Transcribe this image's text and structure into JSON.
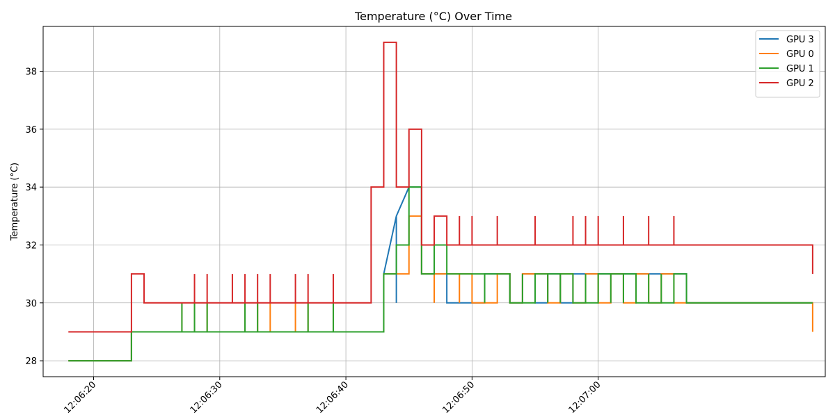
{
  "chart_data": {
    "type": "line",
    "title": "Temperature (°C) Over Time",
    "xlabel": "",
    "ylabel": "Temperature (°C)",
    "xlim": [
      "12:06:16",
      "12:07:18"
    ],
    "ylim": [
      27.45,
      39.55
    ],
    "x_ticks": [
      "12:06:20",
      "12:06:30",
      "12:06:40",
      "12:06:50",
      "12:07:00"
    ],
    "y_ticks": [
      28,
      30,
      32,
      34,
      36,
      38
    ],
    "grid": true,
    "legend_position": "top-right",
    "series": [
      {
        "name": "GPU 3",
        "color": "#1f77b4",
        "step": false,
        "points": [
          [
            "12:06:18",
            28
          ],
          [
            "12:06:23",
            28
          ],
          [
            "12:06:23",
            29
          ],
          [
            "12:06:43",
            29
          ],
          [
            "12:06:43",
            31
          ],
          [
            "12:06:44",
            33
          ],
          [
            "12:06:44",
            30
          ],
          [
            "12:06:44",
            33
          ],
          [
            "12:06:45",
            34
          ],
          [
            "12:06:46",
            34
          ],
          [
            "12:06:46",
            31
          ],
          [
            "12:06:48",
            31
          ],
          [
            "12:06:48",
            30
          ],
          [
            "12:06:51",
            30
          ],
          [
            "12:06:51",
            31
          ],
          [
            "12:06:53",
            31
          ],
          [
            "12:06:53",
            30
          ],
          [
            "12:06:54",
            30
          ],
          [
            "12:06:54",
            31
          ],
          [
            "12:06:55",
            31
          ],
          [
            "12:06:55",
            30
          ],
          [
            "12:06:56",
            30
          ],
          [
            "12:06:56",
            31
          ],
          [
            "12:06:57",
            31
          ],
          [
            "12:06:57",
            30
          ],
          [
            "12:06:58",
            30
          ],
          [
            "12:06:58",
            31
          ],
          [
            "12:07:07",
            31
          ],
          [
            "12:07:07",
            30
          ],
          [
            "12:07:17",
            30
          ]
        ]
      },
      {
        "name": "GPU 0",
        "color": "#ff7f0e",
        "step": true,
        "points": [
          [
            "12:06:18",
            28
          ],
          [
            "12:06:23",
            29
          ],
          [
            "12:06:27",
            30
          ],
          [
            "12:06:27",
            29
          ],
          [
            "12:06:28",
            30
          ],
          [
            "12:06:28",
            29
          ],
          [
            "12:06:29",
            30
          ],
          [
            "12:06:29",
            29
          ],
          [
            "12:06:32",
            30
          ],
          [
            "12:06:32",
            29
          ],
          [
            "12:06:33",
            30
          ],
          [
            "12:06:33",
            29
          ],
          [
            "12:06:34",
            30
          ],
          [
            "12:06:34",
            29
          ],
          [
            "12:06:36",
            30
          ],
          [
            "12:06:36",
            29
          ],
          [
            "12:06:37",
            30
          ],
          [
            "12:06:37",
            29
          ],
          [
            "12:06:39",
            30
          ],
          [
            "12:06:39",
            29
          ],
          [
            "12:06:43",
            31
          ],
          [
            "12:06:45",
            33
          ],
          [
            "12:06:46",
            31
          ],
          [
            "12:06:47",
            30
          ],
          [
            "12:06:47",
            31
          ],
          [
            "12:06:49",
            30
          ],
          [
            "12:06:49",
            31
          ],
          [
            "12:06:50",
            30
          ],
          [
            "12:06:52",
            31
          ],
          [
            "12:06:53",
            30
          ],
          [
            "12:06:54",
            31
          ],
          [
            "12:06:56",
            30
          ],
          [
            "12:06:57",
            31
          ],
          [
            "12:06:58",
            30
          ],
          [
            "12:06:59",
            31
          ],
          [
            "12:07:00",
            30
          ],
          [
            "12:07:01",
            31
          ],
          [
            "12:07:02",
            30
          ],
          [
            "12:07:03",
            31
          ],
          [
            "12:07:04",
            30
          ],
          [
            "12:07:05",
            31
          ],
          [
            "12:07:06",
            30
          ],
          [
            "12:07:07",
            30
          ],
          [
            "12:07:17",
            29
          ]
        ]
      },
      {
        "name": "GPU 1",
        "color": "#2ca02c",
        "step": true,
        "points": [
          [
            "12:06:18",
            28
          ],
          [
            "12:06:23",
            29
          ],
          [
            "12:06:27",
            30
          ],
          [
            "12:06:27",
            29
          ],
          [
            "12:06:28",
            30
          ],
          [
            "12:06:28",
            29
          ],
          [
            "12:06:29",
            30
          ],
          [
            "12:06:29",
            29
          ],
          [
            "12:06:32",
            30
          ],
          [
            "12:06:32",
            29
          ],
          [
            "12:06:33",
            30
          ],
          [
            "12:06:33",
            29
          ],
          [
            "12:06:37",
            30
          ],
          [
            "12:06:37",
            29
          ],
          [
            "12:06:39",
            30
          ],
          [
            "12:06:39",
            29
          ],
          [
            "12:06:43",
            31
          ],
          [
            "12:06:44",
            32
          ],
          [
            "12:06:45",
            34
          ],
          [
            "12:06:46",
            31
          ],
          [
            "12:06:47",
            32
          ],
          [
            "12:06:48",
            31
          ],
          [
            "12:06:51",
            30
          ],
          [
            "12:06:51",
            31
          ],
          [
            "12:06:53",
            30
          ],
          [
            "12:06:54",
            31
          ],
          [
            "12:06:54",
            30
          ],
          [
            "12:06:55",
            31
          ],
          [
            "12:06:56",
            30
          ],
          [
            "12:06:56",
            31
          ],
          [
            "12:06:57",
            30
          ],
          [
            "12:06:57",
            31
          ],
          [
            "12:06:58",
            30
          ],
          [
            "12:06:59",
            31
          ],
          [
            "12:06:59",
            30
          ],
          [
            "12:07:00",
            31
          ],
          [
            "12:07:01",
            30
          ],
          [
            "12:07:01",
            31
          ],
          [
            "12:07:02",
            30
          ],
          [
            "12:07:02",
            31
          ],
          [
            "12:07:03",
            30
          ],
          [
            "12:07:04",
            31
          ],
          [
            "12:07:04",
            30
          ],
          [
            "12:07:05",
            31
          ],
          [
            "12:07:05",
            30
          ],
          [
            "12:07:06",
            31
          ],
          [
            "12:07:07",
            30
          ],
          [
            "12:07:17",
            30
          ]
        ]
      },
      {
        "name": "GPU 2",
        "color": "#d62728",
        "step": true,
        "points": [
          [
            "12:06:18",
            29
          ],
          [
            "12:06:23",
            31
          ],
          [
            "12:06:24",
            30
          ],
          [
            "12:06:28",
            31
          ],
          [
            "12:06:28",
            30
          ],
          [
            "12:06:29",
            31
          ],
          [
            "12:06:29",
            30
          ],
          [
            "12:06:31",
            31
          ],
          [
            "12:06:31",
            30
          ],
          [
            "12:06:32",
            31
          ],
          [
            "12:06:32",
            30
          ],
          [
            "12:06:33",
            31
          ],
          [
            "12:06:33",
            30
          ],
          [
            "12:06:34",
            31
          ],
          [
            "12:06:34",
            30
          ],
          [
            "12:06:36",
            31
          ],
          [
            "12:06:36",
            30
          ],
          [
            "12:06:37",
            31
          ],
          [
            "12:06:37",
            30
          ],
          [
            "12:06:39",
            31
          ],
          [
            "12:06:39",
            30
          ],
          [
            "12:06:42",
            34
          ],
          [
            "12:06:43",
            39
          ],
          [
            "12:06:44",
            37
          ],
          [
            "12:06:44",
            34
          ],
          [
            "12:06:45",
            36
          ],
          [
            "12:06:46",
            32
          ],
          [
            "12:06:47",
            33
          ],
          [
            "12:06:48",
            32
          ],
          [
            "12:06:49",
            33
          ],
          [
            "12:06:49",
            32
          ],
          [
            "12:06:50",
            33
          ],
          [
            "12:06:50",
            32
          ],
          [
            "12:06:52",
            33
          ],
          [
            "12:06:52",
            32
          ],
          [
            "12:06:55",
            33
          ],
          [
            "12:06:55",
            32
          ],
          [
            "12:06:58",
            33
          ],
          [
            "12:06:58",
            32
          ],
          [
            "12:06:59",
            33
          ],
          [
            "12:06:59",
            32
          ],
          [
            "12:07:00",
            33
          ],
          [
            "12:07:00",
            32
          ],
          [
            "12:07:02",
            33
          ],
          [
            "12:07:02",
            32
          ],
          [
            "12:07:04",
            33
          ],
          [
            "12:07:04",
            32
          ],
          [
            "12:07:06",
            33
          ],
          [
            "12:07:06",
            32
          ],
          [
            "12:07:17",
            31
          ]
        ]
      }
    ],
    "legend_order": [
      "GPU 3",
      "GPU 0",
      "GPU 1",
      "GPU 2"
    ]
  }
}
